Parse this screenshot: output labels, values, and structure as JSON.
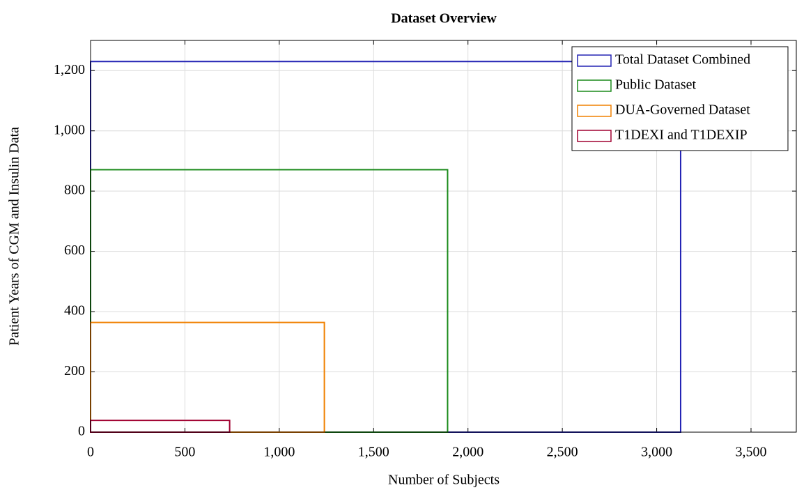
{
  "chart_data": {
    "type": "rect",
    "title": "Dataset Overview",
    "xlabel": "Number of Subjects",
    "ylabel": "Patient Years of CGM and Insulin Data",
    "xlim": [
      0,
      3740
    ],
    "ylim": [
      0,
      1300
    ],
    "xticks": [
      0,
      500,
      {
        "value": 1000,
        "label": "1,000"
      },
      {
        "value": 1500,
        "label": "1,500"
      },
      {
        "value": 2000,
        "label": "2,000"
      },
      {
        "value": 2500,
        "label": "2,500"
      },
      {
        "value": 3000,
        "label": "3,000"
      },
      {
        "value": 3500,
        "label": "3,500"
      }
    ],
    "yticks": [
      0,
      200,
      400,
      600,
      800,
      {
        "value": 1000,
        "label": "1,000"
      },
      {
        "value": 1200,
        "label": "1,200"
      }
    ],
    "grid": true,
    "legend": "north east",
    "series": [
      {
        "name": "Total Dataset Combined",
        "color": "#2323b4",
        "pattern": "north east lines",
        "x": 3127,
        "y": 1230
      },
      {
        "name": "Public Dataset",
        "color": "#1a8a1a",
        "pattern": "dots",
        "x": 1892,
        "y": 871
      },
      {
        "name": "DUA-Governed Dataset",
        "color": "#f08000",
        "pattern": "horizontal lines",
        "x": 1239,
        "y": 364
      },
      {
        "name": "T1DEXI and T1DEXIP",
        "color": "#a00030",
        "pattern": "crosshatch",
        "x": 737,
        "y": 39
      }
    ]
  }
}
